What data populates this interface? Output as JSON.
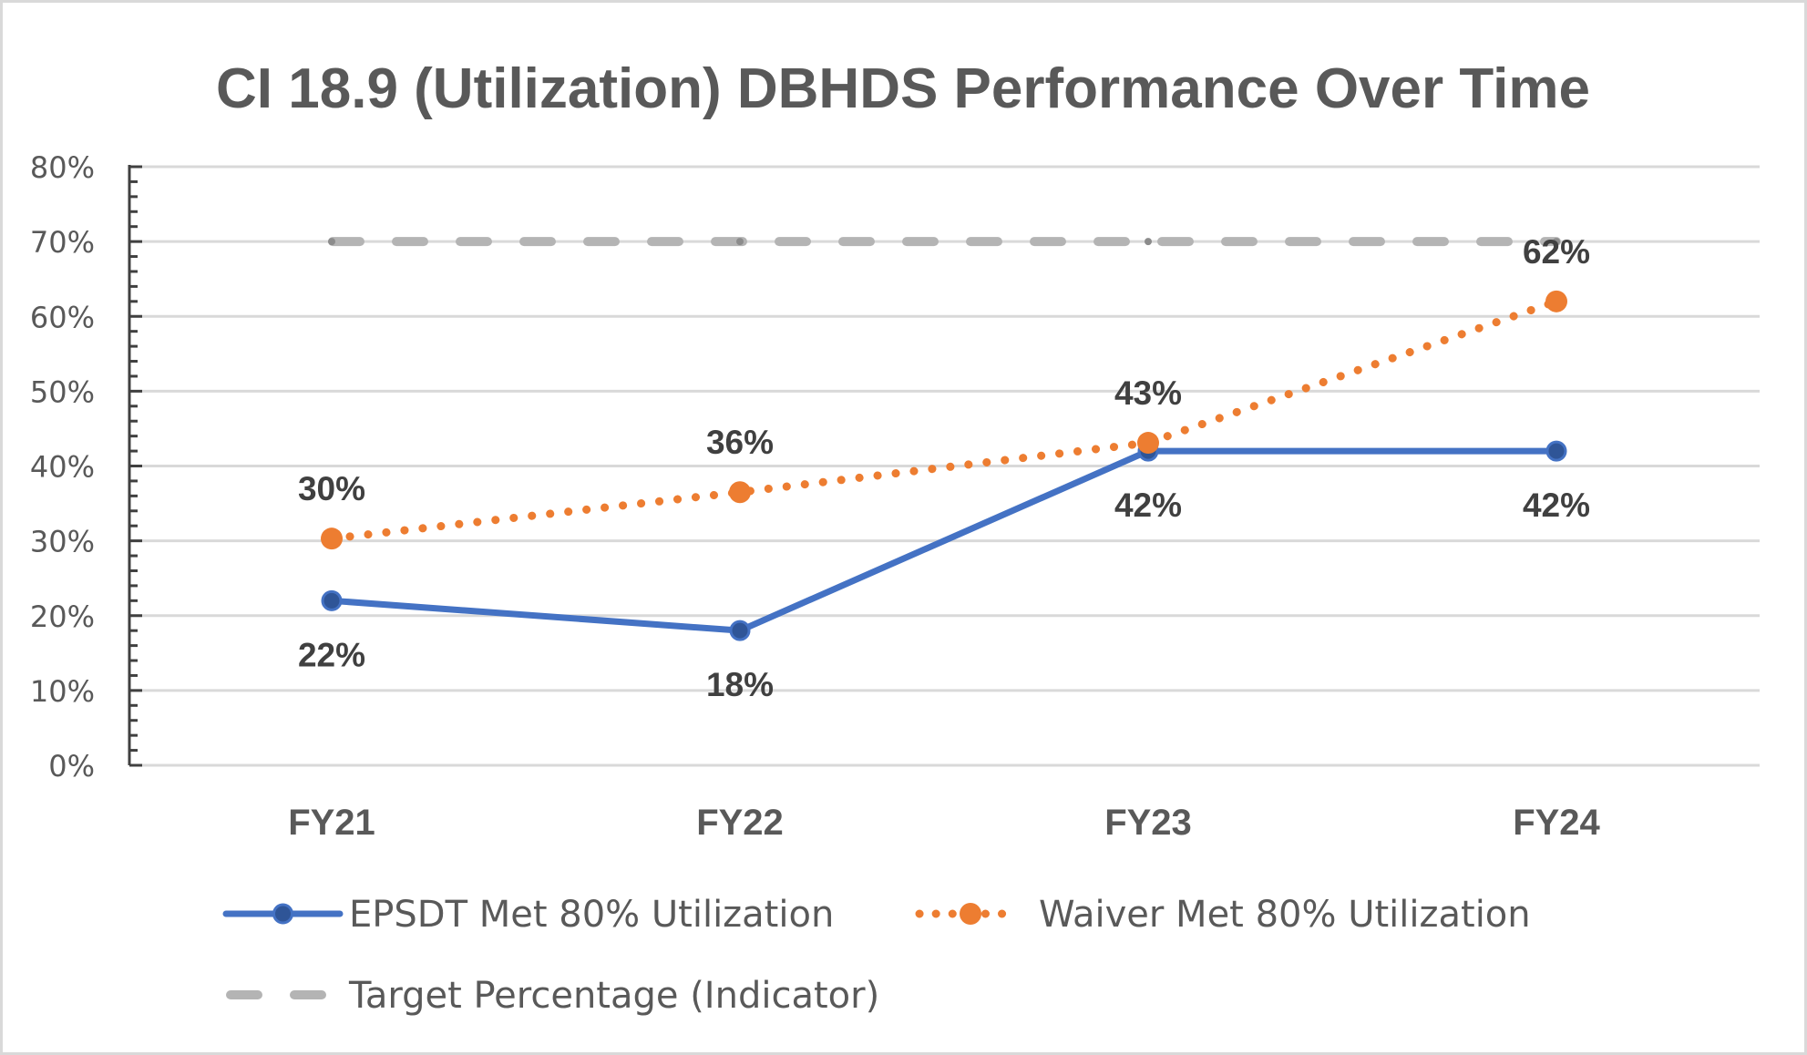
{
  "chart_data": {
    "type": "line",
    "title": "CI 18.9 (Utilization) DBHDS Performance Over Time",
    "xlabel": "",
    "ylabel": "",
    "categories": [
      "FY21",
      "FY22",
      "FY23",
      "FY24"
    ],
    "ylim": [
      0,
      80
    ],
    "yticks": [
      0,
      10,
      20,
      30,
      40,
      50,
      60,
      70,
      80
    ],
    "ytick_labels": [
      "0%",
      "10%",
      "20%",
      "30%",
      "40%",
      "50%",
      "60%",
      "70%",
      "80%"
    ],
    "grid": true,
    "legend_position": "bottom",
    "series": [
      {
        "name": "EPSDT Met 80% Utilization",
        "values": [
          22,
          18,
          42,
          42
        ],
        "labels": [
          "22%",
          "18%",
          "42%",
          "42%"
        ],
        "label_position": "below",
        "color": "#4472C4",
        "marker_color": "#2F5597",
        "style": "solid"
      },
      {
        "name": "Waiver Met 80% Utilization",
        "values": [
          30.3,
          36.5,
          43.1,
          62
        ],
        "labels": [
          "30%",
          "36%",
          "43%",
          "62%"
        ],
        "label_position": "above",
        "color": "#ED7D31",
        "marker_color": "#ED7D31",
        "style": "dotted"
      },
      {
        "name": "Target Percentage (Indicator)",
        "values": [
          70,
          70,
          70,
          70
        ],
        "labels": [],
        "color": "#B4B4B4",
        "style": "dashed"
      }
    ]
  }
}
